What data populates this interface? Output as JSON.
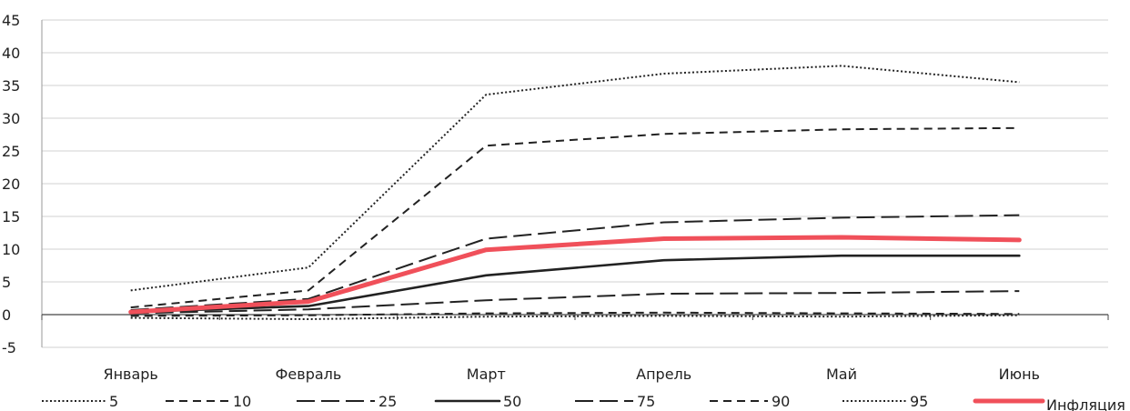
{
  "chart_data": {
    "type": "line",
    "title": "",
    "xlabel": "",
    "ylabel": "",
    "categories": [
      "Январь",
      "Февраль",
      "Март",
      "Апрель",
      "Май",
      "Июнь"
    ],
    "ylim": [
      -5,
      45
    ],
    "yticks": [
      "-5",
      "0",
      "5",
      "10",
      "15",
      "20",
      "25",
      "30",
      "35",
      "40",
      "45"
    ],
    "grid": true,
    "legend_position": "bottom",
    "series": [
      {
        "name": "5",
        "values": [
          -0.5,
          -0.7,
          -0.3,
          -0.2,
          -0.3,
          -0.1
        ],
        "color": "#222222",
        "style": "dotted"
      },
      {
        "name": "10",
        "values": [
          -0.2,
          -0.1,
          0.2,
          0.3,
          0.2,
          0.1
        ],
        "color": "#222222",
        "style": "dashed-short"
      },
      {
        "name": "25",
        "values": [
          0.2,
          0.8,
          2.2,
          3.2,
          3.3,
          3.6
        ],
        "color": "#222222",
        "style": "dashed-long"
      },
      {
        "name": "50",
        "values": [
          0.4,
          1.3,
          6.0,
          8.3,
          9.0,
          9.0
        ],
        "color": "#222222",
        "style": "solid"
      },
      {
        "name": "75",
        "values": [
          0.7,
          2.4,
          11.6,
          14.1,
          14.8,
          15.2
        ],
        "color": "#222222",
        "style": "dashed-long"
      },
      {
        "name": "90",
        "values": [
          1.1,
          3.7,
          25.8,
          27.6,
          28.3,
          28.5
        ],
        "color": "#222222",
        "style": "dashed-short"
      },
      {
        "name": "95",
        "values": [
          3.7,
          7.2,
          33.6,
          36.8,
          38.0,
          35.5
        ],
        "color": "#222222",
        "style": "dotted"
      },
      {
        "name": "Инфляция",
        "values": [
          0.4,
          2.0,
          9.9,
          11.6,
          11.8,
          11.4
        ],
        "color": "#f0505a",
        "style": "solid-thick"
      }
    ]
  }
}
